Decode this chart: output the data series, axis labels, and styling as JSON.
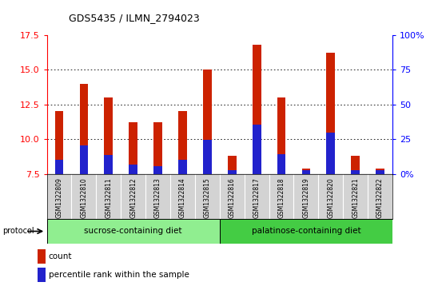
{
  "title": "GDS5435 / ILMN_2794023",
  "samples": [
    "GSM1322809",
    "GSM1322810",
    "GSM1322811",
    "GSM1322812",
    "GSM1322813",
    "GSM1322814",
    "GSM1322815",
    "GSM1322816",
    "GSM1322817",
    "GSM1322818",
    "GSM1322819",
    "GSM1322820",
    "GSM1322821",
    "GSM1322822"
  ],
  "count_values": [
    12.0,
    14.0,
    13.0,
    11.2,
    11.2,
    12.0,
    15.0,
    8.8,
    16.8,
    13.0,
    7.9,
    16.2,
    8.8,
    7.9
  ],
  "percentile_values": [
    8.55,
    9.55,
    8.85,
    8.15,
    8.05,
    8.55,
    9.95,
    7.75,
    11.05,
    8.95,
    7.75,
    10.45,
    7.75,
    7.75
  ],
  "ylim": [
    7.5,
    17.5
  ],
  "yticks": [
    7.5,
    10.0,
    12.5,
    15.0,
    17.5
  ],
  "right_ytick_labels": [
    "0%",
    "25",
    "50",
    "75",
    "100%"
  ],
  "bar_color": "#cc2200",
  "percentile_color": "#2222cc",
  "sucrose_color": "#90ee90",
  "palatinose_color": "#44cc44",
  "sucrose_label": "sucrose-containing diet",
  "palatinose_label": "palatinose-containing diet",
  "protocol_label": "protocol",
  "legend_count_label": "count",
  "legend_percentile_label": "percentile rank within the sample",
  "bar_width": 0.35
}
